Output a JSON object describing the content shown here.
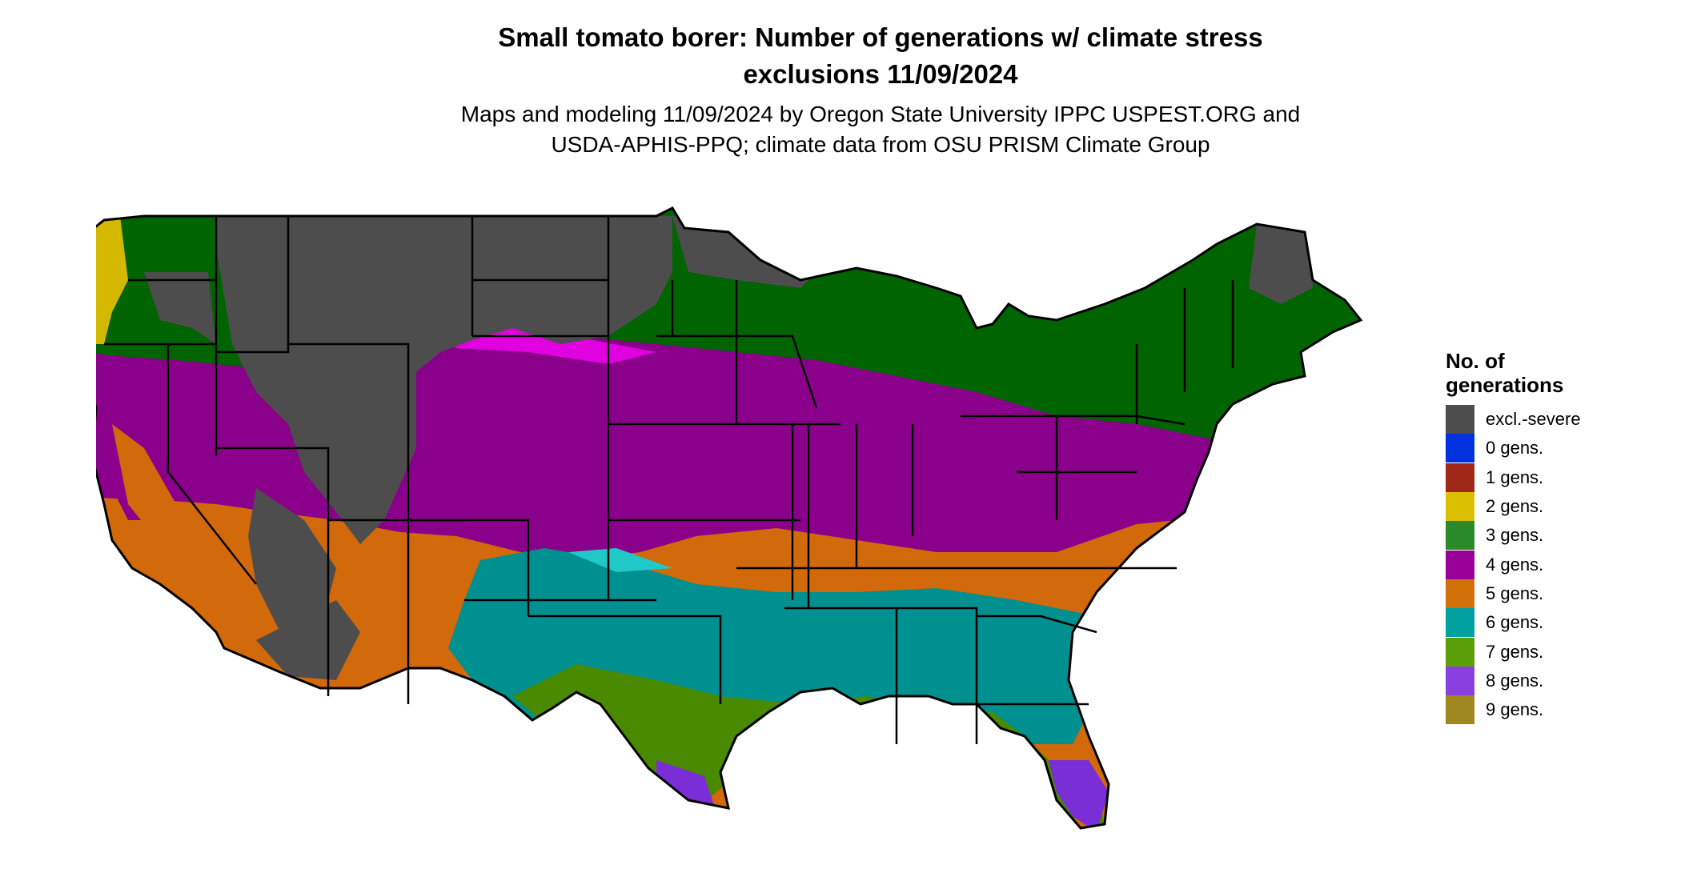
{
  "title": {
    "line1": "Small tomato borer: Number of generations w/ climate stress",
    "line2": "exclusions 11/09/2024"
  },
  "subtitle": {
    "line1": "Maps and modeling 11/09/2024 by Oregon State University IPPC USPEST.ORG and",
    "line2": "USDA-APHIS-PPQ; climate data from OSU PRISM Climate Group"
  },
  "legend": {
    "title_line1": "No. of",
    "title_line2": "generations",
    "items": [
      {
        "label": "excl.-severe",
        "color": "#4d4d4d"
      },
      {
        "label": "0 gens.",
        "color": "#0033dd"
      },
      {
        "label": "1 gens.",
        "color": "#a0281a"
      },
      {
        "label": "2 gens.",
        "color": "#d9bf00"
      },
      {
        "label": "3 gens.",
        "color": "#2a8a2a"
      },
      {
        "label": "4 gens.",
        "color": "#990099"
      },
      {
        "label": "5 gens.",
        "color": "#d2700a"
      },
      {
        "label": "6 gens.",
        "color": "#00a0a0"
      },
      {
        "label": "7 gens.",
        "color": "#5a9e0a"
      },
      {
        "label": "8 gens.",
        "color": "#8a3fe0"
      },
      {
        "label": "9 gens.",
        "color": "#a08820"
      }
    ]
  },
  "map": {
    "region": "contiguous-united-states",
    "zone_colors": {
      "excluded": "#4d4d4d",
      "gen2": "#d4b800",
      "gen3": "#006400",
      "gen3_light": "#2a8a2a",
      "gen4": "#8b008b",
      "gen4_bright": "#e000e0",
      "gen5": "#d2690a",
      "gen6": "#009090",
      "gen6_light": "#20c8c8",
      "gen7": "#4a8a00",
      "gen8": "#7a2fd6",
      "gen9": "#a08820",
      "border": "#000000"
    }
  }
}
